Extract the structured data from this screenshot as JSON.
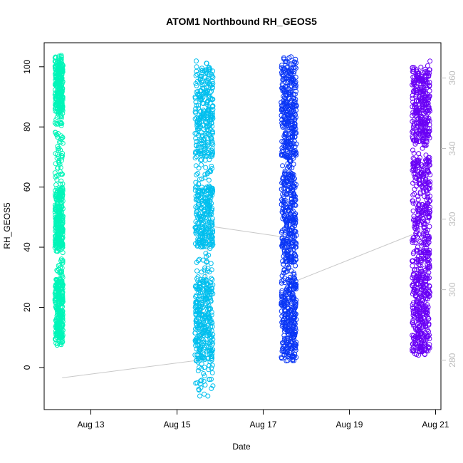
{
  "chart_data": {
    "type": "scatter",
    "title": "ATOM1 Northbound RH_GEOS5",
    "xlabel": "Date",
    "ylabel": "RH_GEOS5",
    "x_ticks": [
      "Aug 13",
      "Aug 15",
      "Aug 17",
      "Aug 19",
      "Aug 21"
    ],
    "y_ticks": [
      0,
      20,
      40,
      60,
      80,
      100
    ],
    "y2_ticks": [
      280,
      300,
      320,
      340,
      360
    ],
    "xlim": [
      "2016-08-11 22:00",
      "2016-08-21 03:00"
    ],
    "ylim": [
      -14,
      108
    ],
    "y2lim": [
      266,
      370
    ],
    "grid": false,
    "series": [
      {
        "color": "#00f5b8",
        "x_range": [
          "2016-08-12 04:00",
          "2016-08-12 08:30"
        ],
        "y_min": 7,
        "y_max": 104,
        "dense_bands": [
          [
            8,
            30
          ],
          [
            40,
            60
          ],
          [
            85,
            102
          ]
        ]
      },
      {
        "color": "#00bfee",
        "x_range": [
          "2016-08-15 10:00",
          "2016-08-15 20:00"
        ],
        "y_min": -10,
        "y_max": 103,
        "dense_bands": [
          [
            2,
            30
          ],
          [
            40,
            60
          ],
          [
            70,
            100
          ]
        ]
      },
      {
        "color": "#0a36f5",
        "x_range": [
          "2016-08-17 10:00",
          "2016-08-17 18:30"
        ],
        "y_min": 2,
        "y_max": 104,
        "dense_bands": [
          [
            3,
            30
          ],
          [
            35,
            65
          ],
          [
            70,
            100
          ]
        ]
      },
      {
        "color": "#6a00f5",
        "x_range": [
          "2016-08-20 11:00",
          "2016-08-20 21:00"
        ],
        "y_min": 4,
        "y_max": 102,
        "dense_bands": [
          [
            5,
            30
          ],
          [
            30,
            70
          ],
          [
            75,
            100
          ]
        ]
      }
    ],
    "secondary_line": {
      "color": "#c8c8c8",
      "axis": "right",
      "points": [
        {
          "x": "2016-08-12 08:00",
          "y": 275
        },
        {
          "x": "2016-08-15 12:00",
          "y": 280
        },
        {
          "x": "2016-08-15 18:00",
          "y": 318
        },
        {
          "x": "2016-08-17 10:30",
          "y": 315
        },
        {
          "x": "2016-08-17 16:00",
          "y": 302
        },
        {
          "x": "2016-08-20 13:00",
          "y": 316
        }
      ]
    }
  }
}
